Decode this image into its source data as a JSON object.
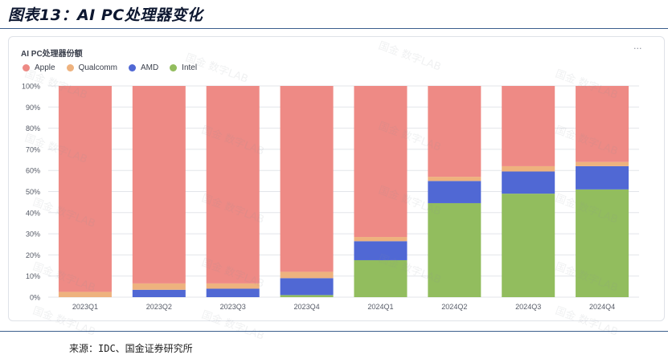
{
  "figure_title": "图表13：AI PC处理器变化",
  "card": {
    "title": "AI PC处理器份额",
    "more_icon": "ellipsis-icon",
    "more_glyph": "···"
  },
  "watermark": {
    "text": "国金 数字LAB"
  },
  "source": "来源：IDC、国金证券研究所",
  "colors": {
    "Apple": "#ee8a85",
    "Qualcomm": "#eeb27e",
    "AMD": "#5068d4",
    "Intel": "#92bd5e",
    "grid": "#e3e5ea",
    "tick": "#555a66"
  },
  "chart_data": {
    "type": "bar",
    "stacked": true,
    "title": "AI PC处理器份额",
    "categories": [
      "2023Q1",
      "2023Q2",
      "2023Q3",
      "2023Q4",
      "2024Q1",
      "2024Q2",
      "2024Q3",
      "2024Q4"
    ],
    "yticks": [
      "0%",
      "10%",
      "20%",
      "30%",
      "40%",
      "50%",
      "60%",
      "70%",
      "80%",
      "90%",
      "100%"
    ],
    "ylim": [
      0,
      100
    ],
    "grid": true,
    "legend_position": "top-left",
    "series": [
      {
        "name": "Intel",
        "values": [
          0,
          0,
          0,
          1,
          17.5,
          44.5,
          49,
          51
        ]
      },
      {
        "name": "AMD",
        "values": [
          0,
          3.5,
          4,
          8,
          9,
          10.5,
          10.5,
          11
        ]
      },
      {
        "name": "Qualcomm",
        "values": [
          2.5,
          3,
          2.5,
          3,
          2,
          2,
          2.5,
          2
        ]
      },
      {
        "name": "Apple",
        "values": [
          97.5,
          93.5,
          93.5,
          88,
          71.5,
          43,
          38,
          36
        ]
      }
    ],
    "legend_order": [
      "Apple",
      "Qualcomm",
      "AMD",
      "Intel"
    ]
  }
}
